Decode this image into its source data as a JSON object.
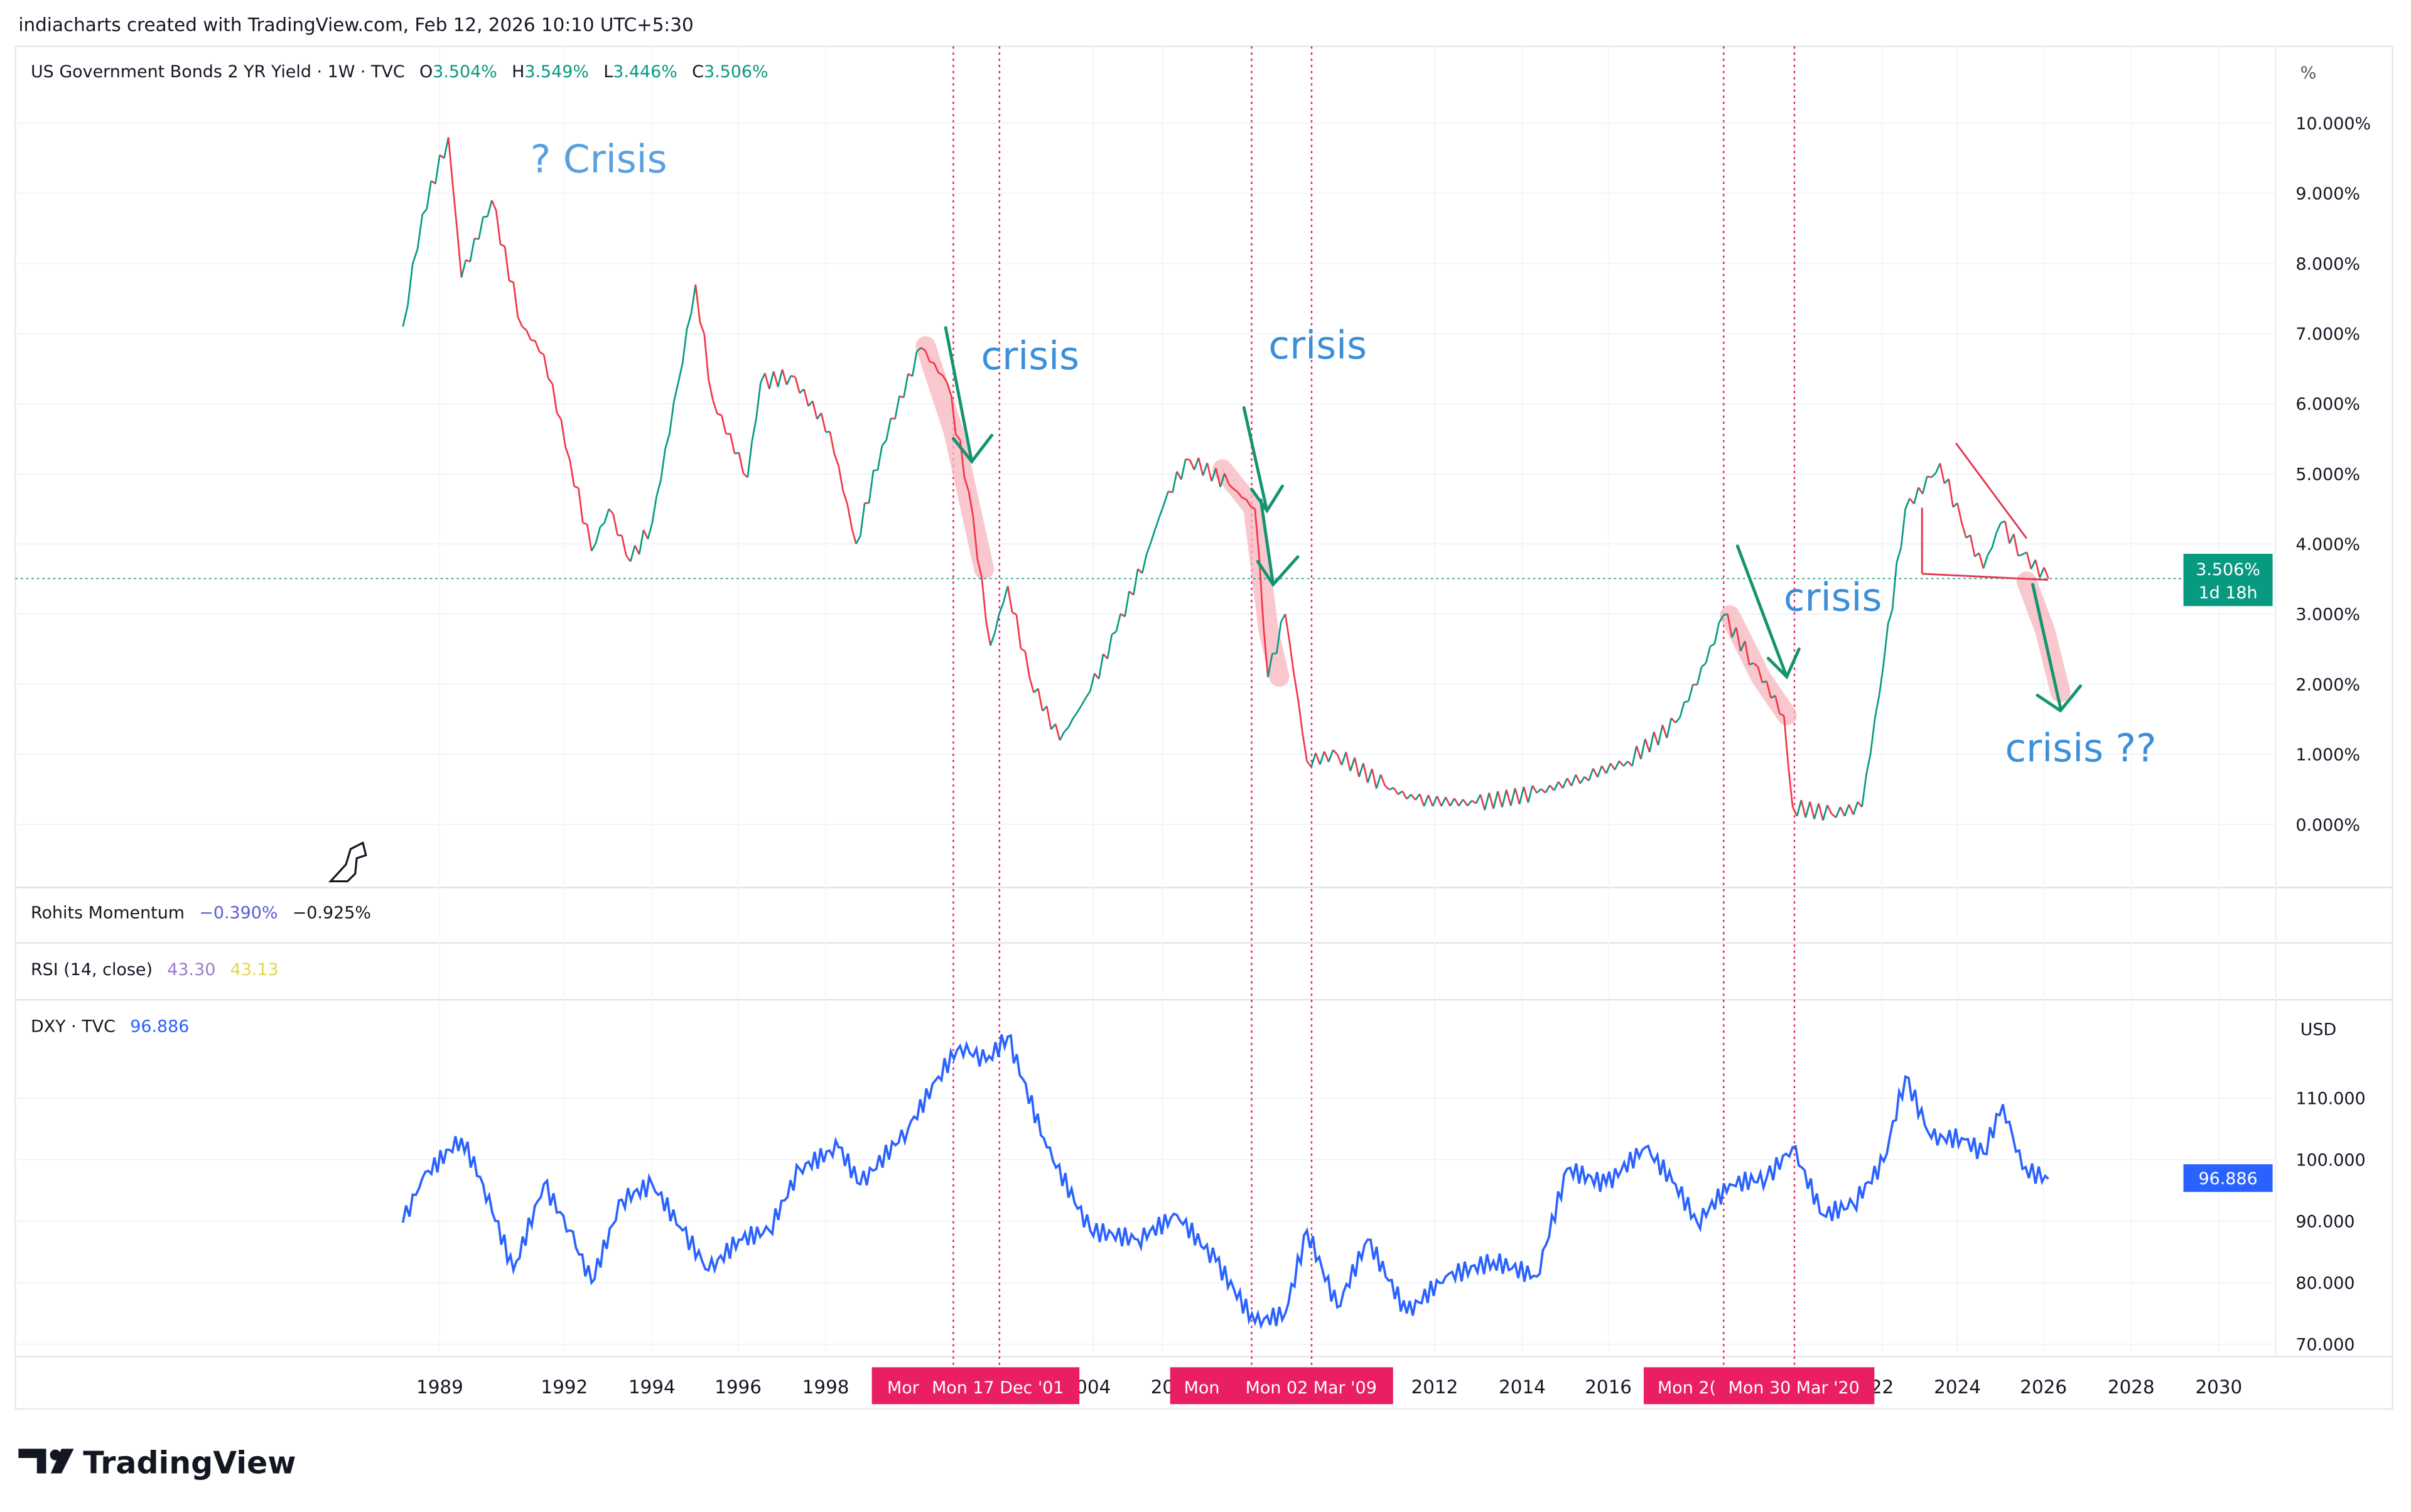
{
  "header": {
    "caption": "indiacharts created with TradingView.com, Feb 12, 2026 10:10 UTC+5:30"
  },
  "colors": {
    "up": "#089981",
    "down": "#f23645",
    "dxy": "#2962ff",
    "marker": "#e91e63",
    "annotation": "#3b8fd9",
    "arrow": "#14946e",
    "highlight": "#f7b6bd"
  },
  "main_legend": {
    "symbol": "US Government Bonds 2 YR Yield · 1W · TVC",
    "o_label": "O",
    "o": "3.504%",
    "h_label": "H",
    "h": "3.549%",
    "l_label": "L",
    "l": "3.446%",
    "c_label": "C",
    "c": "3.506%"
  },
  "indicators": {
    "momentum": {
      "name": "Rohits Momentum",
      "v1": "−0.390%",
      "v2": "−0.925%"
    },
    "rsi": {
      "name": "RSI (14, close)",
      "v1": "43.30",
      "v2": "43.13"
    },
    "dxy": {
      "name": "DXY · TVC",
      "value": "96.886"
    }
  },
  "price_tag": {
    "value": "3.506%",
    "countdown": "1d 18h"
  },
  "dxy_tag": {
    "value": "96.886"
  },
  "main_unit": "%",
  "dxy_unit": "USD",
  "annotations": {
    "q_crisis": "? Crisis",
    "crisis1": "crisis",
    "crisis2": "crisis",
    "crisis3": "crisis",
    "crisis4": "crisis ??"
  },
  "date_markers": [
    "Mor",
    "Mon 17 Dec '01",
    "Mon",
    "Mon 02 Mar '09",
    "Mon 2(",
    "Mon 30 Mar '20"
  ],
  "x_ticks": [
    "1989",
    "1992",
    "1994",
    "1996",
    "1998",
    "004",
    "20",
    "2012",
    "2014",
    "2016",
    "22",
    "2024",
    "2026",
    "2028",
    "2030"
  ],
  "chart_data": [
    {
      "type": "line",
      "title": "US Government Bonds 2 YR Yield · 1W · TVC",
      "ylabel": "%",
      "ylim": [
        0,
        10
      ],
      "xlim": [
        1988,
        2031
      ],
      "y_ticks": [
        "10.000%",
        "9.000%",
        "8.000%",
        "7.000%",
        "6.000%",
        "5.000%",
        "4.000%",
        "3.000%",
        "2.000%",
        "1.000%",
        "0.000%"
      ],
      "grid": true,
      "last_price": 3.506,
      "points": [
        [
          1988.15,
          7.1
        ],
        [
          1988.6,
          8.7
        ],
        [
          1989.2,
          9.8
        ],
        [
          1989.5,
          7.8
        ],
        [
          1990.2,
          8.9
        ],
        [
          1990.9,
          7.1
        ],
        [
          1991.4,
          6.7
        ],
        [
          1992.0,
          5.2
        ],
        [
          1992.5,
          3.9
        ],
        [
          1992.9,
          4.5
        ],
        [
          1993.4,
          3.75
        ],
        [
          1993.9,
          4.3
        ],
        [
          1994.5,
          6.3
        ],
        [
          1994.9,
          7.7
        ],
        [
          1995.3,
          6.05
        ],
        [
          1996.1,
          4.95
        ],
        [
          1996.4,
          6.3
        ],
        [
          1997.1,
          6.4
        ],
        [
          1998.0,
          5.6
        ],
        [
          1998.6,
          4.0
        ],
        [
          1999.2,
          5.4
        ],
        [
          2000.1,
          6.8
        ],
        [
          2000.7,
          6.3
        ],
        [
          2001.2,
          4.75
        ],
        [
          2001.7,
          2.55
        ],
        [
          2002.1,
          3.4
        ],
        [
          2002.6,
          2.1
        ],
        [
          2003.3,
          1.2
        ],
        [
          2004.0,
          1.9
        ],
        [
          2004.6,
          2.75
        ],
        [
          2005.3,
          3.85
        ],
        [
          2005.8,
          4.75
        ],
        [
          2006.3,
          5.2
        ],
        [
          2007.2,
          4.85
        ],
        [
          2007.8,
          4.5
        ],
        [
          2008.1,
          2.1
        ],
        [
          2008.5,
          3.0
        ],
        [
          2009.0,
          0.9
        ],
        [
          2009.7,
          1.0
        ],
        [
          2010.8,
          0.55
        ],
        [
          2011.5,
          0.35
        ],
        [
          2012.9,
          0.3
        ],
        [
          2014.3,
          0.45
        ],
        [
          2015.4,
          0.68
        ],
        [
          2016.4,
          0.9
        ],
        [
          2017.5,
          1.45
        ],
        [
          2018.2,
          2.3
        ],
        [
          2018.6,
          2.98
        ],
        [
          2019.3,
          2.3
        ],
        [
          2020.0,
          1.55
        ],
        [
          2020.2,
          0.25
        ],
        [
          2021.1,
          0.15
        ],
        [
          2021.8,
          0.25
        ],
        [
          2022.3,
          2.3
        ],
        [
          2022.8,
          4.5
        ],
        [
          2023.4,
          4.95
        ],
        [
          2023.6,
          5.15
        ],
        [
          2024.1,
          4.3
        ],
        [
          2024.6,
          3.65
        ],
        [
          2025.0,
          4.3
        ],
        [
          2025.5,
          3.85
        ],
        [
          2026.1,
          3.506
        ]
      ]
    },
    {
      "type": "line",
      "title": "DXY · TVC",
      "ylabel": "USD",
      "ylim": [
        67,
        122
      ],
      "y_ticks": [
        "110.000",
        "100.000",
        "90.000",
        "80.000",
        "70.000"
      ],
      "last_price": 96.886,
      "points": [
        [
          1988.15,
          89.75
        ],
        [
          1988.6,
          97
        ],
        [
          1989.5,
          103.5
        ],
        [
          1990.0,
          96
        ],
        [
          1990.7,
          82
        ],
        [
          1991.4,
          96
        ],
        [
          1992.0,
          88.5
        ],
        [
          1992.5,
          80
        ],
        [
          1993.2,
          93.5
        ],
        [
          1993.9,
          96
        ],
        [
          1994.6,
          88.5
        ],
        [
          1995.2,
          82
        ],
        [
          1995.9,
          87
        ],
        [
          1996.6,
          88.5
        ],
        [
          1997.3,
          98.5
        ],
        [
          1998.2,
          102
        ],
        [
          1998.7,
          96
        ],
        [
          1999.8,
          105
        ],
        [
          2000.5,
          113.5
        ],
        [
          2001.0,
          118.5
        ],
        [
          2001.6,
          116
        ],
        [
          2002.1,
          120
        ],
        [
          2003.0,
          102
        ],
        [
          2004.0,
          88.5
        ],
        [
          2005.1,
          87
        ],
        [
          2006.0,
          91
        ],
        [
          2006.9,
          83.5
        ],
        [
          2007.8,
          73.5
        ],
        [
          2008.5,
          75
        ],
        [
          2009.0,
          88.5
        ],
        [
          2009.7,
          76
        ],
        [
          2010.4,
          87
        ],
        [
          2011.3,
          75
        ],
        [
          2012.2,
          81
        ],
        [
          2013.3,
          83.5
        ],
        [
          2014.3,
          81
        ],
        [
          2015.0,
          98.5
        ],
        [
          2015.9,
          96
        ],
        [
          2016.8,
          102
        ],
        [
          2017.5,
          96
        ],
        [
          2018.0,
          89.75
        ],
        [
          2018.75,
          96
        ],
        [
          2019.6,
          97
        ],
        [
          2020.2,
          102
        ],
        [
          2020.9,
          91
        ],
        [
          2021.6,
          92.75
        ],
        [
          2022.3,
          99.75
        ],
        [
          2022.8,
          113.5
        ],
        [
          2023.4,
          103.5
        ],
        [
          2024.1,
          103.5
        ],
        [
          2024.6,
          101
        ],
        [
          2025.05,
          109
        ],
        [
          2025.5,
          98.5
        ],
        [
          2026.1,
          96.886
        ]
      ]
    }
  ]
}
